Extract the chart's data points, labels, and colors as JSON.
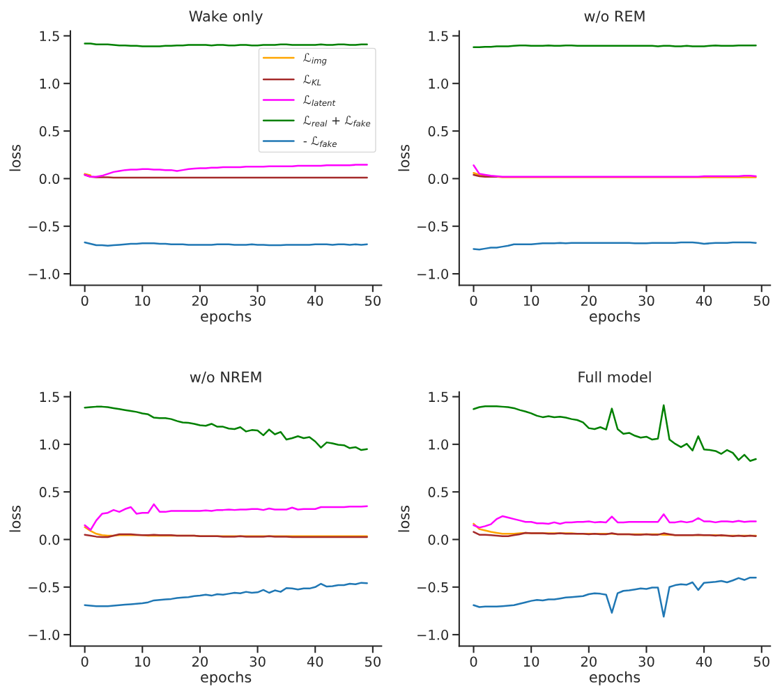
{
  "chart_data": [
    {
      "type": "line",
      "title": "Wake only",
      "xlabel": "epochs",
      "ylabel": "loss",
      "legend": "top right",
      "x": [
        0,
        1,
        2,
        3,
        4,
        5,
        6,
        7,
        8,
        9,
        10,
        11,
        12,
        13,
        14,
        15,
        16,
        17,
        18,
        19,
        20,
        21,
        22,
        23,
        24,
        25,
        26,
        27,
        28,
        29,
        30,
        31,
        32,
        33,
        34,
        35,
        36,
        37,
        38,
        39,
        40,
        41,
        42,
        43,
        44,
        45,
        46,
        47,
        48,
        49
      ],
      "xlim": [
        -2.5,
        51.5
      ],
      "xticks": [
        0,
        10,
        20,
        30,
        40,
        50
      ],
      "ylim": [
        -1.12,
        1.55
      ],
      "yticks": [
        {
          "value": -1.0,
          "label": "−1.0"
        },
        {
          "value": -0.5,
          "label": "−0.5"
        },
        {
          "value": 0.0,
          "label": "0.0"
        },
        {
          "value": 0.5,
          "label": "0.5"
        },
        {
          "value": 1.0,
          "label": "1.0"
        },
        {
          "value": 1.5,
          "label": "1.5"
        }
      ],
      "series": [
        {
          "name": "ℒ$_{img}$",
          "color": "#ffa500",
          "values": [
            0.05,
            0.035,
            null,
            null,
            null,
            null,
            null,
            null,
            null,
            null,
            null,
            null,
            null,
            null,
            null,
            null,
            null,
            null,
            null,
            null,
            null,
            null,
            null,
            null,
            null,
            null,
            null,
            null,
            null,
            null,
            null,
            null,
            null,
            null,
            null,
            null,
            null,
            null,
            null,
            null,
            null,
            null,
            null,
            null,
            null,
            null,
            null,
            null,
            null,
            null
          ]
        },
        {
          "name": "ℒ$_{KL}$",
          "color": "#a52a2a",
          "values": [
            0.04,
            0.02,
            0.015,
            0.015,
            0.015,
            0.01,
            0.01,
            0.01,
            0.01,
            0.01,
            0.01,
            0.01,
            0.01,
            0.01,
            0.01,
            0.01,
            0.01,
            0.01,
            0.01,
            0.01,
            0.01,
            0.01,
            0.01,
            0.01,
            0.01,
            0.01,
            0.01,
            0.01,
            0.01,
            0.01,
            0.01,
            0.01,
            0.01,
            0.01,
            0.01,
            0.01,
            0.01,
            0.01,
            0.01,
            0.01,
            0.01,
            0.01,
            0.01,
            0.01,
            0.01,
            0.01,
            0.01,
            0.01,
            0.01,
            0.01
          ]
        },
        {
          "name": "ℒ$_{latent}$",
          "color": "#ff00ff",
          "values": [
            0.04,
            0.02,
            0.02,
            0.03,
            0.05,
            0.07,
            0.08,
            0.09,
            0.095,
            0.095,
            0.1,
            0.1,
            0.095,
            0.095,
            0.09,
            0.09,
            0.08,
            0.09,
            0.1,
            0.105,
            0.11,
            0.11,
            0.115,
            0.115,
            0.12,
            0.12,
            0.12,
            0.12,
            0.125,
            0.125,
            0.125,
            0.125,
            0.13,
            0.13,
            0.13,
            0.13,
            0.13,
            0.135,
            0.135,
            0.135,
            0.135,
            0.135,
            0.14,
            0.14,
            0.14,
            0.14,
            0.14,
            0.145,
            0.145,
            0.145
          ]
        },
        {
          "name": "ℒ$_{real}$ + ℒ$_{fake}$",
          "color": "#008000",
          "values": [
            1.42,
            1.42,
            1.41,
            1.41,
            1.41,
            1.405,
            1.4,
            1.4,
            1.395,
            1.395,
            1.39,
            1.39,
            1.39,
            1.39,
            1.395,
            1.395,
            1.4,
            1.4,
            1.405,
            1.405,
            1.405,
            1.405,
            1.4,
            1.405,
            1.405,
            1.4,
            1.4,
            1.405,
            1.405,
            1.4,
            1.4,
            1.405,
            1.405,
            1.405,
            1.41,
            1.41,
            1.405,
            1.405,
            1.405,
            1.405,
            1.405,
            1.41,
            1.405,
            1.405,
            1.41,
            1.41,
            1.405,
            1.405,
            1.41,
            1.41
          ]
        },
        {
          "name": "- ℒ$_{fake}$",
          "color": "#1f77b4",
          "values": [
            -0.67,
            -0.685,
            -0.7,
            -0.7,
            -0.705,
            -0.7,
            -0.695,
            -0.69,
            -0.685,
            -0.685,
            -0.68,
            -0.68,
            -0.68,
            -0.685,
            -0.685,
            -0.69,
            -0.69,
            -0.69,
            -0.695,
            -0.695,
            -0.695,
            -0.695,
            -0.695,
            -0.69,
            -0.69,
            -0.69,
            -0.695,
            -0.695,
            -0.695,
            -0.69,
            -0.695,
            -0.695,
            -0.7,
            -0.7,
            -0.7,
            -0.695,
            -0.695,
            -0.695,
            -0.695,
            -0.695,
            -0.69,
            -0.69,
            -0.69,
            -0.695,
            -0.69,
            -0.69,
            -0.695,
            -0.69,
            -0.695,
            -0.69
          ]
        }
      ]
    },
    {
      "type": "line",
      "title": "w/o REM",
      "xlabel": "epochs",
      "ylabel": "loss",
      "x": [
        0,
        1,
        2,
        3,
        4,
        5,
        6,
        7,
        8,
        9,
        10,
        11,
        12,
        13,
        14,
        15,
        16,
        17,
        18,
        19,
        20,
        21,
        22,
        23,
        24,
        25,
        26,
        27,
        28,
        29,
        30,
        31,
        32,
        33,
        34,
        35,
        36,
        37,
        38,
        39,
        40,
        41,
        42,
        43,
        44,
        45,
        46,
        47,
        48,
        49
      ],
      "xlim": [
        -2.5,
        51.5
      ],
      "xticks": [
        0,
        10,
        20,
        30,
        40,
        50
      ],
      "ylim": [
        -1.12,
        1.55
      ],
      "yticks": [
        {
          "value": -1.0,
          "label": "−1.0"
        },
        {
          "value": -0.5,
          "label": "−0.5"
        },
        {
          "value": 0.0,
          "label": "0.0"
        },
        {
          "value": 0.5,
          "label": "0.5"
        },
        {
          "value": 1.0,
          "label": "1.0"
        },
        {
          "value": 1.5,
          "label": "1.5"
        }
      ],
      "series": [
        {
          "color": "#ffa500",
          "values": [
            0.06,
            0.04,
            0.03,
            0.025,
            0.02,
            0.015,
            0.015,
            0.015,
            0.015,
            0.015,
            0.015,
            0.015,
            0.015,
            0.015,
            0.015,
            0.015,
            0.015,
            0.015,
            0.015,
            0.015,
            0.015,
            0.015,
            0.015,
            0.015,
            0.015,
            0.015,
            0.015,
            0.015,
            0.015,
            0.015,
            0.015,
            0.015,
            0.015,
            0.015,
            0.015,
            0.015,
            0.015,
            0.015,
            0.015,
            0.015,
            0.015,
            0.015,
            0.015,
            0.015,
            0.015,
            0.015,
            0.015,
            0.015,
            0.015,
            0.015
          ]
        },
        {
          "color": "#a52a2a",
          "values": [
            0.04,
            0.025,
            0.02,
            0.02,
            0.02,
            null,
            null,
            null,
            null,
            null,
            null,
            null,
            null,
            null,
            null,
            null,
            null,
            null,
            null,
            null,
            null,
            null,
            null,
            null,
            null,
            null,
            null,
            null,
            null,
            null,
            null,
            null,
            null,
            null,
            null,
            null,
            null,
            null,
            null,
            null,
            null,
            null,
            null,
            null,
            null,
            null,
            null,
            null,
            null,
            null
          ]
        },
        {
          "color": "#ff00ff",
          "values": [
            0.14,
            0.05,
            0.04,
            0.03,
            0.025,
            0.02,
            0.02,
            0.02,
            0.02,
            0.02,
            0.02,
            0.02,
            0.02,
            0.02,
            0.02,
            0.02,
            0.02,
            0.02,
            0.02,
            0.02,
            0.02,
            0.02,
            0.02,
            0.02,
            0.02,
            0.02,
            0.02,
            0.02,
            0.02,
            0.02,
            0.02,
            0.02,
            0.02,
            0.02,
            0.02,
            0.02,
            0.02,
            0.02,
            0.02,
            0.02,
            0.025,
            0.025,
            0.025,
            0.025,
            0.025,
            0.025,
            0.025,
            0.03,
            0.03,
            0.025
          ]
        },
        {
          "color": "#008000",
          "values": [
            1.38,
            1.38,
            1.385,
            1.385,
            1.39,
            1.39,
            1.39,
            1.395,
            1.4,
            1.4,
            1.395,
            1.395,
            1.395,
            1.4,
            1.395,
            1.395,
            1.4,
            1.4,
            1.395,
            1.395,
            1.395,
            1.395,
            1.395,
            1.395,
            1.395,
            1.395,
            1.395,
            1.395,
            1.395,
            1.395,
            1.395,
            1.395,
            1.39,
            1.395,
            1.395,
            1.39,
            1.39,
            1.395,
            1.39,
            1.39,
            1.39,
            1.395,
            1.4,
            1.395,
            1.395,
            1.395,
            1.4,
            1.4,
            1.4,
            1.4
          ]
        },
        {
          "color": "#1f77b4",
          "values": [
            -0.74,
            -0.745,
            -0.735,
            -0.725,
            -0.725,
            -0.715,
            -0.705,
            -0.69,
            -0.69,
            -0.69,
            -0.69,
            -0.685,
            -0.68,
            -0.68,
            -0.68,
            -0.675,
            -0.68,
            -0.675,
            -0.675,
            -0.675,
            -0.675,
            -0.675,
            -0.675,
            -0.675,
            -0.675,
            -0.675,
            -0.675,
            -0.675,
            -0.68,
            -0.68,
            -0.68,
            -0.675,
            -0.675,
            -0.675,
            -0.675,
            -0.675,
            -0.67,
            -0.67,
            -0.67,
            -0.675,
            -0.685,
            -0.68,
            -0.675,
            -0.675,
            -0.675,
            -0.67,
            -0.67,
            -0.67,
            -0.67,
            -0.675
          ]
        }
      ]
    },
    {
      "type": "line",
      "title": "w/o NREM",
      "xlabel": "epochs",
      "ylabel": "loss",
      "x": [
        0,
        1,
        2,
        3,
        4,
        5,
        6,
        7,
        8,
        9,
        10,
        11,
        12,
        13,
        14,
        15,
        16,
        17,
        18,
        19,
        20,
        21,
        22,
        23,
        24,
        25,
        26,
        27,
        28,
        29,
        30,
        31,
        32,
        33,
        34,
        35,
        36,
        37,
        38,
        39,
        40,
        41,
        42,
        43,
        44,
        45,
        46,
        47,
        48,
        49
      ],
      "xlim": [
        -2.5,
        51.5
      ],
      "xticks": [
        0,
        10,
        20,
        30,
        40,
        50
      ],
      "ylim": [
        -1.12,
        1.55
      ],
      "yticks": [
        {
          "value": -1.0,
          "label": "−1.0"
        },
        {
          "value": -0.5,
          "label": "−0.5"
        },
        {
          "value": 0.0,
          "label": "0.0"
        },
        {
          "value": 0.5,
          "label": "0.5"
        },
        {
          "value": 1.0,
          "label": "1.0"
        },
        {
          "value": 1.5,
          "label": "1.5"
        }
      ],
      "series": [
        {
          "color": "#ffa500",
          "values": [
            0.13,
            0.09,
            0.06,
            0.045,
            0.04,
            0.04,
            0.045,
            0.045,
            0.045,
            0.045,
            0.045,
            0.04,
            0.04,
            0.04,
            0.04,
            0.04,
            0.04,
            0.04,
            0.04,
            0.04,
            0.035,
            0.035,
            0.035,
            0.035,
            0.035,
            0.035,
            0.035,
            0.035,
            0.035,
            0.035,
            0.035,
            0.035,
            0.035,
            0.035,
            0.035,
            0.035,
            0.035,
            0.035,
            0.035,
            0.035,
            0.035,
            0.035,
            0.035,
            0.035,
            0.035,
            0.035,
            0.035,
            0.035,
            0.035,
            0.035
          ]
        },
        {
          "color": "#a52a2a",
          "values": [
            0.05,
            0.04,
            0.03,
            0.025,
            0.025,
            0.04,
            0.055,
            0.055,
            0.055,
            0.05,
            0.045,
            0.045,
            0.05,
            0.045,
            0.045,
            0.045,
            0.04,
            0.04,
            0.04,
            0.04,
            0.035,
            0.035,
            0.035,
            0.035,
            0.03,
            0.03,
            0.03,
            0.035,
            0.03,
            0.03,
            0.03,
            0.03,
            0.035,
            0.03,
            0.03,
            0.03,
            0.025,
            0.025,
            0.025,
            0.025,
            0.025,
            0.025,
            0.025,
            0.025,
            0.025,
            0.025,
            0.025,
            0.025,
            0.025,
            0.025
          ]
        },
        {
          "color": "#ff00ff",
          "values": [
            0.15,
            0.1,
            0.2,
            0.27,
            0.28,
            0.31,
            0.29,
            0.32,
            0.34,
            0.27,
            0.28,
            0.28,
            0.37,
            0.29,
            0.29,
            0.3,
            0.3,
            0.3,
            0.3,
            0.3,
            0.3,
            0.305,
            0.3,
            0.31,
            0.31,
            0.315,
            0.31,
            0.315,
            0.315,
            0.32,
            0.32,
            0.31,
            0.325,
            0.315,
            0.315,
            0.315,
            0.335,
            0.315,
            0.32,
            0.32,
            0.32,
            0.34,
            0.34,
            0.34,
            0.34,
            0.34,
            0.345,
            0.345,
            0.345,
            0.35
          ]
        },
        {
          "color": "#008000",
          "values": [
            1.385,
            1.39,
            1.395,
            1.395,
            1.39,
            1.38,
            1.37,
            1.36,
            1.35,
            1.34,
            1.325,
            1.315,
            1.28,
            1.275,
            1.275,
            1.265,
            1.245,
            1.23,
            1.225,
            1.215,
            1.2,
            1.195,
            1.215,
            1.185,
            1.185,
            1.165,
            1.16,
            1.18,
            1.135,
            1.15,
            1.145,
            1.095,
            1.155,
            1.105,
            1.13,
            1.05,
            1.065,
            1.085,
            1.065,
            1.075,
            1.03,
            0.965,
            1.02,
            1.01,
            0.995,
            0.99,
            0.96,
            0.97,
            0.94,
            0.95
          ]
        },
        {
          "color": "#1f77b4",
          "values": [
            -0.69,
            -0.695,
            -0.7,
            -0.7,
            -0.7,
            -0.695,
            -0.69,
            -0.685,
            -0.68,
            -0.675,
            -0.67,
            -0.66,
            -0.64,
            -0.635,
            -0.63,
            -0.625,
            -0.615,
            -0.61,
            -0.605,
            -0.595,
            -0.59,
            -0.58,
            -0.59,
            -0.575,
            -0.58,
            -0.57,
            -0.56,
            -0.565,
            -0.55,
            -0.56,
            -0.555,
            -0.53,
            -0.56,
            -0.535,
            -0.55,
            -0.51,
            -0.515,
            -0.525,
            -0.515,
            -0.515,
            -0.5,
            -0.465,
            -0.495,
            -0.49,
            -0.48,
            -0.48,
            -0.465,
            -0.47,
            -0.455,
            -0.46
          ]
        }
      ]
    },
    {
      "type": "line",
      "title": "Full model",
      "xlabel": "epochs",
      "ylabel": "loss",
      "x": [
        0,
        1,
        2,
        3,
        4,
        5,
        6,
        7,
        8,
        9,
        10,
        11,
        12,
        13,
        14,
        15,
        16,
        17,
        18,
        19,
        20,
        21,
        22,
        23,
        24,
        25,
        26,
        27,
        28,
        29,
        30,
        31,
        32,
        33,
        34,
        35,
        36,
        37,
        38,
        39,
        40,
        41,
        42,
        43,
        44,
        45,
        46,
        47,
        48,
        49
      ],
      "xlim": [
        -2.5,
        51.5
      ],
      "xticks": [
        0,
        10,
        20,
        30,
        40,
        50
      ],
      "ylim": [
        -1.12,
        1.55
      ],
      "yticks": [
        {
          "value": -1.0,
          "label": "−1.0"
        },
        {
          "value": -0.5,
          "label": "−0.5"
        },
        {
          "value": 0.0,
          "label": "0.0"
        },
        {
          "value": 0.5,
          "label": "0.5"
        },
        {
          "value": 1.0,
          "label": "1.0"
        },
        {
          "value": 1.5,
          "label": "1.5"
        }
      ],
      "series": [
        {
          "color": "#ffa500",
          "values": [
            0.165,
            0.11,
            0.095,
            0.08,
            0.07,
            0.06,
            0.06,
            0.06,
            0.065,
            0.07,
            0.065,
            0.065,
            0.065,
            0.065,
            0.065,
            0.065,
            0.065,
            0.065,
            0.06,
            0.06,
            0.06,
            0.06,
            0.06,
            0.06,
            0.06,
            0.055,
            0.055,
            0.055,
            0.055,
            0.055,
            0.055,
            0.055,
            0.055,
            0.05,
            0.05,
            0.045,
            0.045,
            0.045,
            0.045,
            0.045,
            0.045,
            0.045,
            0.045,
            0.04,
            0.04,
            0.04,
            0.04,
            0.04,
            0.04,
            0.04
          ]
        },
        {
          "color": "#a52a2a",
          "values": [
            0.08,
            0.05,
            0.05,
            0.045,
            0.04,
            0.035,
            0.035,
            0.045,
            0.055,
            0.07,
            0.065,
            0.065,
            0.065,
            0.06,
            0.06,
            0.065,
            0.06,
            0.06,
            0.06,
            0.06,
            0.055,
            0.06,
            0.055,
            0.055,
            0.065,
            0.055,
            0.055,
            0.055,
            0.05,
            0.05,
            0.055,
            0.05,
            0.05,
            0.065,
            0.055,
            0.045,
            0.045,
            0.045,
            0.045,
            0.05,
            0.045,
            0.045,
            0.04,
            0.045,
            0.04,
            0.035,
            0.04,
            0.035,
            0.04,
            0.035
          ]
        },
        {
          "color": "#ff00ff",
          "values": [
            0.15,
            0.125,
            0.14,
            0.16,
            0.215,
            0.245,
            0.23,
            0.215,
            0.2,
            0.185,
            0.185,
            0.17,
            0.17,
            0.165,
            0.18,
            0.165,
            0.18,
            0.18,
            0.185,
            0.185,
            0.19,
            0.18,
            0.185,
            0.18,
            0.24,
            0.18,
            0.18,
            0.185,
            0.185,
            0.185,
            0.185,
            0.185,
            0.185,
            0.265,
            0.18,
            0.18,
            0.19,
            0.18,
            0.19,
            0.225,
            0.19,
            0.19,
            0.18,
            0.19,
            0.19,
            0.185,
            0.195,
            0.185,
            0.19,
            0.19
          ]
        },
        {
          "color": "#008000",
          "values": [
            1.37,
            1.39,
            1.4,
            1.4,
            1.4,
            1.395,
            1.39,
            1.38,
            1.36,
            1.345,
            1.325,
            1.3,
            1.285,
            1.295,
            1.285,
            1.29,
            1.28,
            1.265,
            1.255,
            1.23,
            1.17,
            1.16,
            1.18,
            1.155,
            1.375,
            1.16,
            1.11,
            1.12,
            1.09,
            1.07,
            1.08,
            1.05,
            1.06,
            1.41,
            1.05,
            1.005,
            0.97,
            1.005,
            0.935,
            1.085,
            0.945,
            0.94,
            0.93,
            0.9,
            0.94,
            0.91,
            0.835,
            0.89,
            0.825,
            0.845
          ]
        },
        {
          "color": "#1f77b4",
          "values": [
            -0.69,
            -0.71,
            -0.705,
            -0.705,
            -0.705,
            -0.7,
            -0.695,
            -0.69,
            -0.675,
            -0.66,
            -0.645,
            -0.635,
            -0.64,
            -0.63,
            -0.63,
            -0.62,
            -0.61,
            -0.605,
            -0.6,
            -0.595,
            -0.575,
            -0.565,
            -0.57,
            -0.58,
            -0.77,
            -0.565,
            -0.54,
            -0.535,
            -0.525,
            -0.515,
            -0.52,
            -0.505,
            -0.505,
            -0.81,
            -0.5,
            -0.48,
            -0.47,
            -0.475,
            -0.45,
            -0.53,
            -0.455,
            -0.45,
            -0.445,
            -0.435,
            -0.45,
            -0.43,
            -0.405,
            -0.425,
            -0.4,
            -0.4
          ]
        }
      ]
    }
  ]
}
